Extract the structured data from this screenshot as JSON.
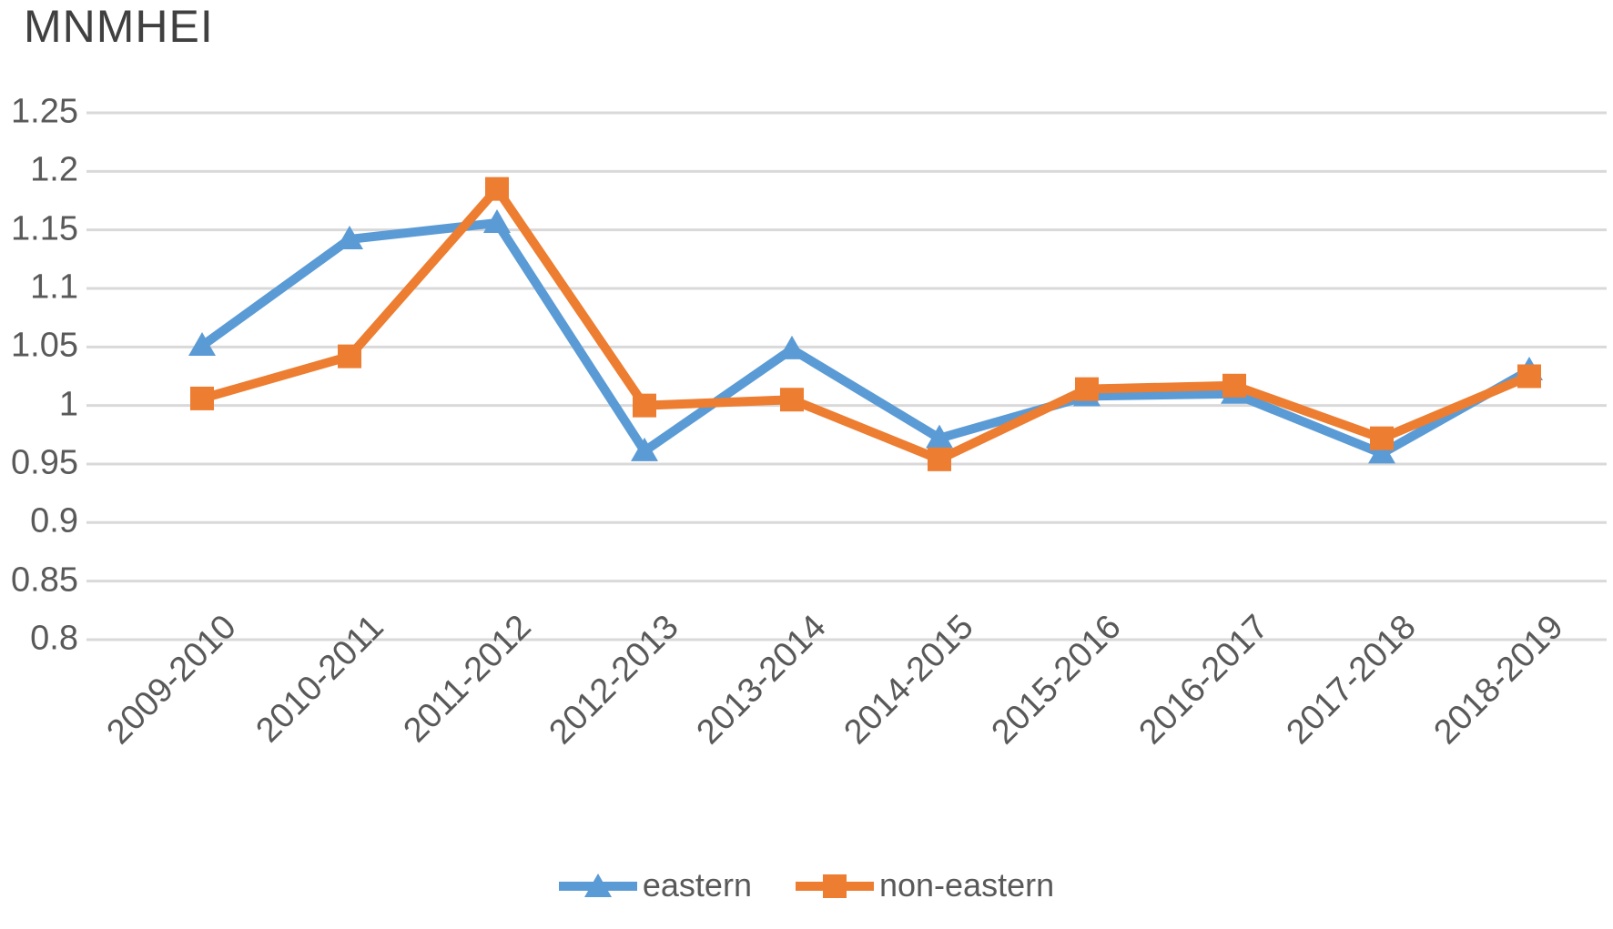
{
  "chart_data": {
    "type": "line",
    "title": "MNMHEI",
    "categories": [
      "2009-2010",
      "2010-2011",
      "2011-2012",
      "2012-2013",
      "2013-2014",
      "2014-2015",
      "2015-2016",
      "2016-2017",
      "2017-2018",
      "2018-2019"
    ],
    "series": [
      {
        "name": "eastern",
        "color": "#5B9BD5",
        "marker": "triangle",
        "values": [
          1.051,
          1.142,
          1.156,
          0.961,
          1.048,
          0.972,
          1.008,
          1.01,
          0.959,
          1.03
        ]
      },
      {
        "name": "non-eastern",
        "color": "#ED7D31",
        "marker": "square",
        "values": [
          1.006,
          1.042,
          1.185,
          1.0,
          1.005,
          0.954,
          1.014,
          1.017,
          0.972,
          1.025
        ]
      }
    ],
    "xlabel": "",
    "ylabel": "",
    "ylim": [
      0.8,
      1.25
    ],
    "ytick_step": 0.05,
    "yticks": [
      "1.25",
      "1.2",
      "1.15",
      "1.1",
      "1.05",
      "1",
      "0.95",
      "0.9",
      "0.85",
      "0.8"
    ],
    "grid": "horizontal",
    "legend_position": "bottom"
  },
  "colors": {
    "grid": "#D9D9D9",
    "axis_text": "#595959",
    "title_text": "#404040",
    "background": "#FFFFFF"
  }
}
